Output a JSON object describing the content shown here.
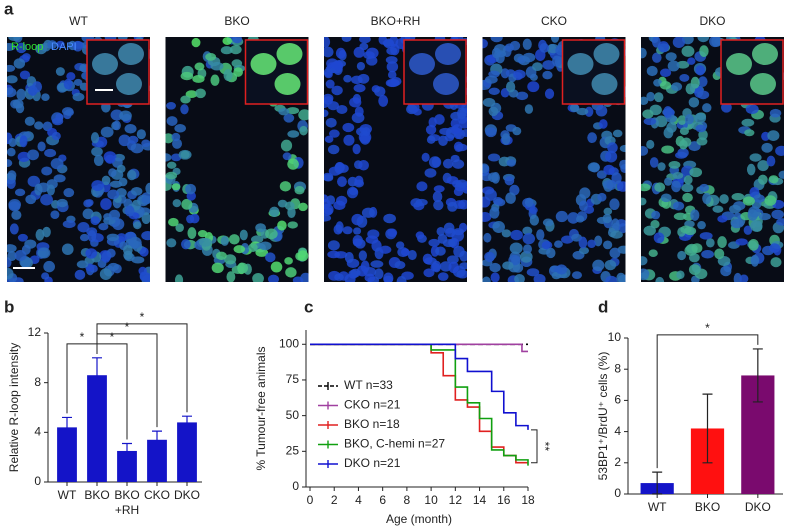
{
  "panel_a": {
    "label": "a",
    "stain": [
      "R-loop",
      "DAPI"
    ],
    "images": [
      "WT",
      "BKO",
      "BKO+RH",
      "CKO",
      "DKO"
    ]
  },
  "chart_data": [
    {
      "label": "b",
      "type": "bar",
      "ylabel": "Relative R-loop intensity",
      "categories": [
        "WT",
        "BKO",
        "BKO\n+RH",
        "CKO",
        "DKO"
      ],
      "values": [
        4.4,
        8.6,
        2.5,
        3.4,
        4.8
      ],
      "errors": [
        0.8,
        1.4,
        0.6,
        0.7,
        0.5
      ],
      "colors": [
        "#1414c8",
        "#1414c8",
        "#1414c8",
        "#1414c8",
        "#1414c8"
      ],
      "ylim": [
        0,
        12
      ],
      "yticks": [
        0,
        4,
        8,
        12
      ],
      "significance": [
        {
          "between": [
            "WT",
            "BKO"
          ],
          "label": "*"
        },
        {
          "between": [
            "BKO",
            "BKO\n+RH"
          ],
          "label": "*"
        },
        {
          "between": [
            "BKO",
            "CKO"
          ],
          "label": "*"
        },
        {
          "between": [
            "BKO",
            "DKO"
          ],
          "label": "*"
        }
      ]
    },
    {
      "label": "c",
      "type": "step",
      "xlabel": "Age (month)",
      "ylabel": "% Tumour-free animals",
      "xlim": [
        0,
        18
      ],
      "xticks": [
        0,
        2,
        4,
        6,
        8,
        10,
        12,
        14,
        16,
        18
      ],
      "ylim": [
        0,
        110
      ],
      "yticks": [
        0,
        25,
        50,
        75,
        100
      ],
      "legend": "left",
      "series": [
        {
          "name": "WT n=33",
          "color": "#000000",
          "dashed": true,
          "x": [
            0,
            18
          ],
          "values": [
            100,
            100
          ]
        },
        {
          "name": "CKO n=21",
          "color": "#a040a0",
          "x": [
            0,
            17.5,
            18
          ],
          "values": [
            100,
            95,
            95
          ]
        },
        {
          "name": "BKO n=18",
          "color": "#e02020",
          "x": [
            0,
            10,
            11,
            12,
            13,
            14,
            15,
            16,
            17,
            18
          ],
          "values": [
            100,
            94,
            78,
            61,
            56,
            39,
            28,
            22,
            17,
            17
          ]
        },
        {
          "name": "BKO, C-hemi n=27",
          "color": "#10a010",
          "x": [
            0,
            10,
            12,
            13,
            14,
            15,
            16,
            17,
            18
          ],
          "values": [
            100,
            96,
            70,
            59,
            48,
            26,
            22,
            19,
            15
          ]
        },
        {
          "name": "DKO n=21",
          "color": "#1010d0",
          "x": [
            0,
            12,
            13,
            15,
            16,
            17,
            18
          ],
          "values": [
            100,
            90,
            81,
            67,
            52,
            43,
            40
          ]
        }
      ],
      "significance": [
        {
          "between": [
            "BKO n=18",
            "DKO n=21"
          ],
          "label": "**"
        }
      ]
    },
    {
      "label": "d",
      "type": "bar",
      "ylabel": "53BP1⁺/BrdU⁺ cells (%)",
      "categories": [
        "WT",
        "BKO",
        "DKO"
      ],
      "values": [
        0.7,
        4.2,
        7.6
      ],
      "errors": [
        0.7,
        2.2,
        1.7
      ],
      "colors": [
        "#1414c8",
        "#ff1010",
        "#7a0a6e"
      ],
      "ylim": [
        0,
        10
      ],
      "yticks": [
        0,
        2,
        4,
        6,
        8,
        10
      ],
      "significance": [
        {
          "between": [
            "WT",
            "DKO"
          ],
          "label": "*"
        }
      ]
    }
  ]
}
